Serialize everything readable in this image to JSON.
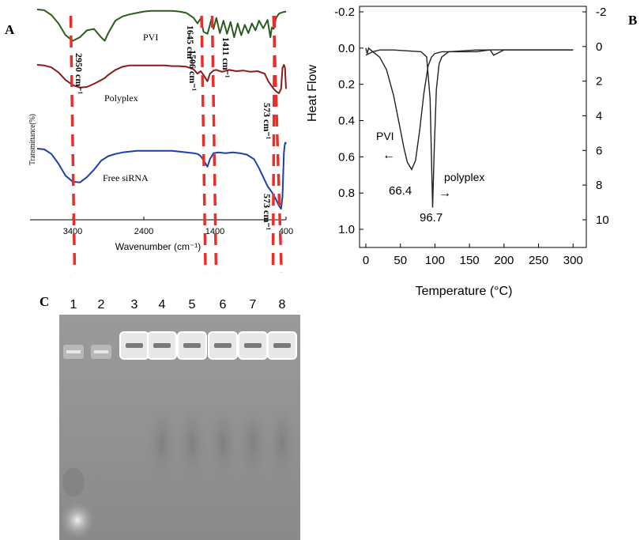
{
  "panels": {
    "a": "A",
    "b": "B",
    "c": "C"
  },
  "chart_data": [
    {
      "panel": "A",
      "type": "line",
      "ylabel": "Transmittance(%)",
      "xlabel": "Wavenumber (cm⁻¹)",
      "x_ticks": [
        3400,
        2400,
        1400,
        400
      ],
      "x_tick_labels": [
        "3400",
        "2400",
        "1400",
        "400"
      ],
      "xlim": [
        4000,
        400
      ],
      "x_reversed": true,
      "grid": false,
      "series": [
        {
          "name": "PVI",
          "color": "#2d5a1f",
          "x": [
            3900,
            3800,
            3700,
            3600,
            3500,
            3400,
            3300,
            3200,
            3100,
            3000,
            2950,
            2900,
            2800,
            2700,
            2600,
            2500,
            2400,
            2300,
            2200,
            2100,
            2000,
            1900,
            1800,
            1700,
            1645,
            1600,
            1560,
            1506,
            1480,
            1450,
            1420,
            1380,
            1330,
            1280,
            1230,
            1180,
            1130,
            1080,
            1030,
            980,
            930,
            880,
            830,
            780,
            720,
            660,
            620,
            600,
            573,
            540,
            500,
            450,
            400
          ],
          "y": [
            100,
            99,
            92,
            80,
            63,
            55,
            60,
            70,
            72,
            60,
            55,
            66,
            84,
            90,
            93,
            95,
            97,
            98,
            98,
            98,
            98,
            97,
            95,
            88,
            80,
            87,
            68,
            65,
            74,
            86,
            72,
            88,
            66,
            84,
            65,
            82,
            60,
            80,
            63,
            78,
            66,
            80,
            70,
            84,
            73,
            85,
            60,
            74,
            72,
            88,
            94,
            96,
            97
          ]
        },
        {
          "name": "Polyplex",
          "color": "#8b1a1a",
          "x": [
            3900,
            3800,
            3700,
            3600,
            3500,
            3400,
            3300,
            3200,
            3100,
            3000,
            2950,
            2900,
            2800,
            2700,
            2600,
            2500,
            2400,
            2300,
            2200,
            2100,
            2000,
            1900,
            1800,
            1700,
            1645,
            1600,
            1560,
            1506,
            1470,
            1420,
            1380,
            1300,
            1200,
            1100,
            1000,
            900,
            800,
            700,
            650,
            600,
            573,
            540,
            500,
            470,
            450,
            430,
            415,
            400
          ],
          "y": [
            100,
            99,
            96,
            88,
            76,
            68,
            64,
            65,
            70,
            76,
            79,
            84,
            92,
            97,
            99,
            99,
            99,
            99,
            99,
            99,
            98,
            98,
            97,
            93,
            86,
            90,
            84,
            74,
            86,
            91,
            92,
            89,
            92,
            90,
            91,
            89,
            90,
            86,
            74,
            66,
            62,
            58,
            55,
            62,
            95,
            100,
            96,
            62
          ]
        },
        {
          "name": "Free siRNA",
          "color": "#1f3ea8",
          "x": [
            3900,
            3800,
            3700,
            3600,
            3500,
            3400,
            3300,
            3200,
            3100,
            3000,
            2900,
            2800,
            2700,
            2600,
            2500,
            2400,
            2300,
            2200,
            2100,
            2000,
            1900,
            1800,
            1700,
            1645,
            1600,
            1570,
            1506,
            1470,
            1420,
            1350,
            1250,
            1150,
            1050,
            950,
            850,
            780,
            720,
            660,
            600,
            573,
            540,
            500,
            470,
            450,
            440,
            430,
            420,
            410,
            400
          ],
          "y": [
            100,
            99,
            93,
            80,
            64,
            56,
            55,
            62,
            72,
            84,
            90,
            93,
            95,
            96,
            97,
            97,
            97,
            97,
            97,
            97,
            96,
            95,
            94,
            93,
            90,
            86,
            76,
            86,
            94,
            95,
            94,
            95,
            94,
            92,
            86,
            74,
            62,
            50,
            42,
            38,
            32,
            24,
            20,
            36,
            66,
            94,
            104,
            108,
            106
          ]
        }
      ],
      "annotations": [
        {
          "text": "PVI"
        },
        {
          "text": "1645 cm⁻¹"
        },
        {
          "text": "1506 cm⁻¹"
        },
        {
          "text": "1411 cm⁻¹"
        },
        {
          "text": "2950 cm⁻¹"
        },
        {
          "text": "Polyplex"
        },
        {
          "text": "573 cm⁻¹"
        },
        {
          "text": "Free siRNA"
        },
        {
          "text": "573 cm⁻¹"
        }
      ],
      "reference_lines_x": [
        3400,
        1560,
        1411,
        573,
        520
      ],
      "reference_line_color": "#e8302a"
    },
    {
      "panel": "B",
      "type": "line",
      "xlabel": "Temperature (°C)",
      "ylabel": "Heat Flow",
      "xlim": [
        0,
        310
      ],
      "x_ticks": [
        0,
        50,
        100,
        150,
        200,
        250,
        300
      ],
      "ylim_left": [
        -0.2,
        1.0
      ],
      "y_ticks_left": [
        "-0.2",
        "0.0",
        "0.2",
        "0.4",
        "0.6",
        "0.8",
        "1.0"
      ],
      "y_ticks_left_values": [
        -0.2,
        0.0,
        0.2,
        0.4,
        0.6,
        0.8,
        1.0
      ],
      "ylim_right": [
        -2,
        11.6
      ],
      "y_ticks_right": [
        "-2",
        "0",
        "2",
        "4",
        "6",
        "8",
        "10"
      ],
      "y_ticks_right_values": [
        -2,
        0,
        2,
        4,
        6,
        8,
        10
      ],
      "grid": false,
      "series": [
        {
          "name": "PVI",
          "axis": "left",
          "color": "#222222",
          "x": [
            0,
            2,
            4,
            10,
            20,
            30,
            40,
            50,
            55,
            60,
            66.4,
            72,
            78,
            84,
            90,
            95,
            100,
            110,
            120,
            140,
            160,
            180,
            200,
            250,
            300
          ],
          "y": [
            0.0,
            0.03,
            0.0,
            0.02,
            0.05,
            0.12,
            0.26,
            0.45,
            0.55,
            0.63,
            0.67,
            0.62,
            0.45,
            0.25,
            0.1,
            0.05,
            0.03,
            0.02,
            0.02,
            0.02,
            0.02,
            0.01,
            0.01,
            0.01,
            0.01
          ]
        },
        {
          "name": "polyplex",
          "axis": "right",
          "color": "#222222",
          "x": [
            0,
            10,
            20,
            40,
            60,
            80,
            88,
            93,
            96.7,
            99,
            102,
            106,
            110,
            120,
            140,
            160,
            180,
            185,
            200,
            250,
            290,
            300
          ],
          "y": [
            0.5,
            0.3,
            0.2,
            0.2,
            0.25,
            0.3,
            0.6,
            3.0,
            9.3,
            6.0,
            2.5,
            1.0,
            0.6,
            0.3,
            0.25,
            0.2,
            0.2,
            0.5,
            0.2,
            0.2,
            0.2,
            0.2
          ]
        }
      ],
      "annotations": [
        {
          "text": "PVI"
        },
        {
          "text": "66.4"
        },
        {
          "text": "polyplex"
        },
        {
          "text": "96.7"
        }
      ]
    }
  ],
  "gel": {
    "panel": "C",
    "lane_labels": [
      "1",
      "2",
      "3",
      "4",
      "5",
      "6",
      "7",
      "8"
    ]
  }
}
